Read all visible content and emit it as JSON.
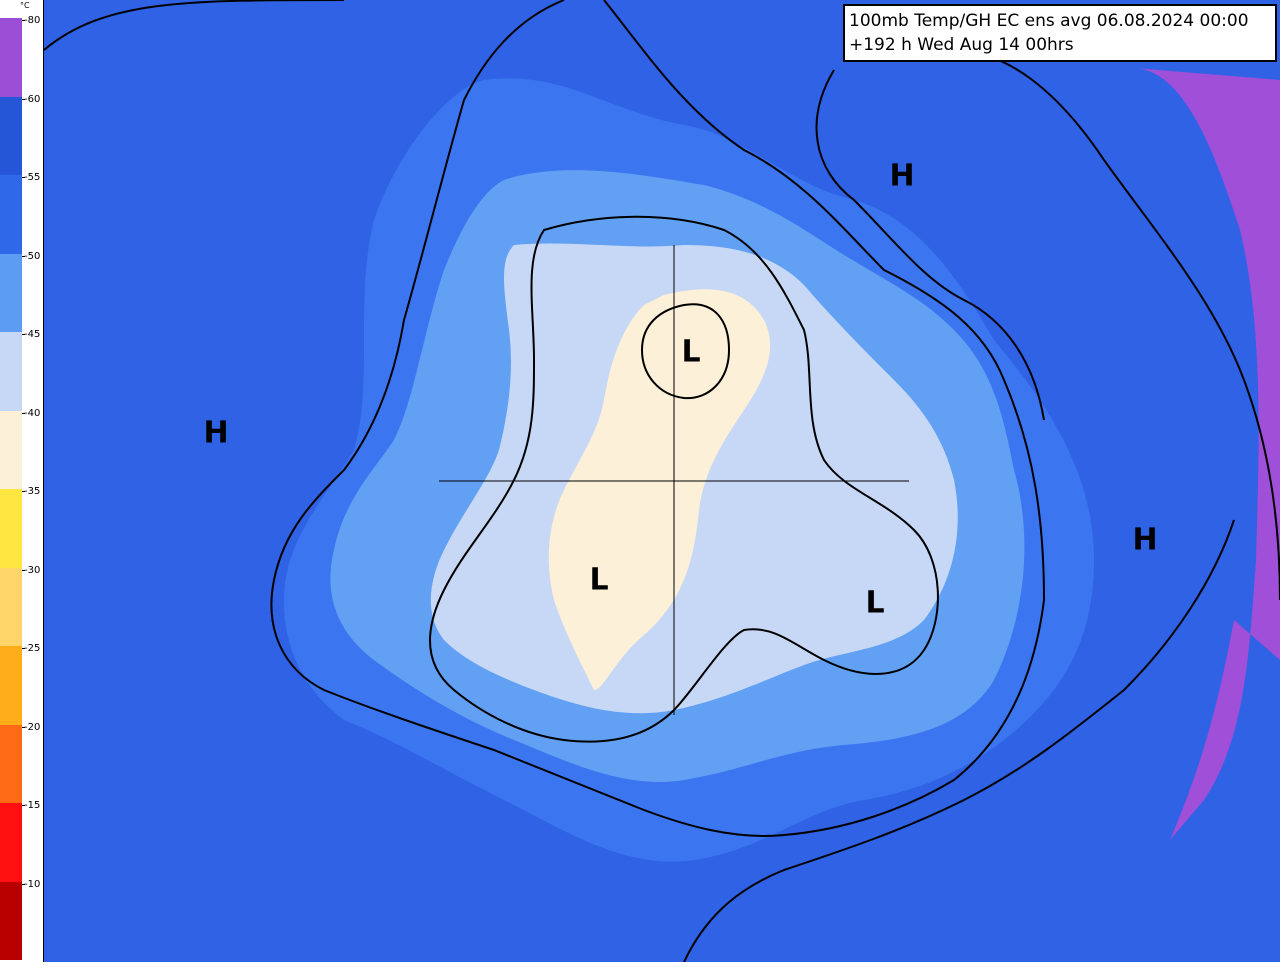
{
  "title": {
    "line1": "100mb Temp/GH  EC ens avg 06.08.2024 00:00",
    "line2": " +192 h Wed Aug 14 00hrs"
  },
  "colorbar": {
    "unit": "°C",
    "bands": [
      {
        "label": "-80",
        "color": "#9b4fd6"
      },
      {
        "label": "-60",
        "color": "#2656d8"
      },
      {
        "label": "-55",
        "color": "#3068ea"
      },
      {
        "label": "-50",
        "color": "#5c9cf2"
      },
      {
        "label": "-45",
        "color": "#c6d8f6"
      },
      {
        "label": "-40",
        "color": "#fdf0d8"
      },
      {
        "label": "-35",
        "color": "#ffe640"
      },
      {
        "label": "-30",
        "color": "#ffd468"
      },
      {
        "label": "-25",
        "color": "#ffae1a"
      },
      {
        "label": "-20",
        "color": "#ff6a14"
      },
      {
        "label": "-15",
        "color": "#ff1010"
      },
      {
        "label": "-10",
        "color": "#b80000"
      }
    ]
  },
  "pressure_centers": [
    {
      "label": "H",
      "kind": "high",
      "region": "north-america"
    },
    {
      "label": "H",
      "kind": "high",
      "region": "east-siberia"
    },
    {
      "label": "H",
      "kind": "high",
      "region": "central-asia"
    },
    {
      "label": "L",
      "kind": "low",
      "region": "arctic-ocean"
    },
    {
      "label": "L",
      "kind": "low",
      "region": "greenland"
    },
    {
      "label": "L",
      "kind": "low",
      "region": "northern-russia"
    }
  ]
}
